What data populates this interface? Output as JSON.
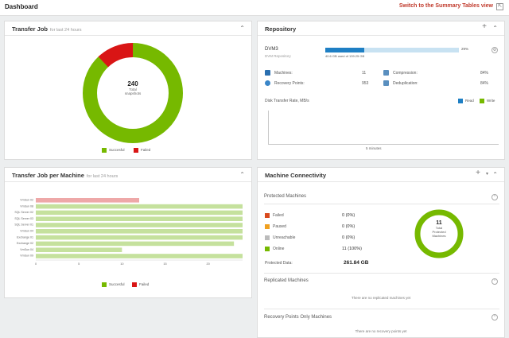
{
  "topbar": {
    "title": "Dashboard",
    "switch_label": "Switch to the Summary Tables view"
  },
  "transfer_job": {
    "title": "Transfer Job",
    "subtitle": "for last 24 hours",
    "total_value": "240",
    "total_label_1": "Total",
    "total_label_2": "snapshots",
    "legend": [
      {
        "label": "Succesful",
        "color": "#76b900"
      },
      {
        "label": "Failed",
        "color": "#d91515"
      }
    ],
    "chart_data": {
      "type": "pie",
      "title": "",
      "slices": [
        {
          "name": "Succesful",
          "value": 211,
          "color": "#76b900"
        },
        {
          "name": "Failed",
          "value": 29,
          "color": "#d91515"
        }
      ]
    }
  },
  "repository": {
    "title": "Repository",
    "name": "DVM3",
    "type": "DVM Repository",
    "usage_text": "40.6 GB used of 139.25 GB",
    "usage_percent": 29,
    "usage_percent_label": "29%",
    "metrics": [
      {
        "label": "Machines:",
        "value": "11"
      },
      {
        "label": "Recovery Points:",
        "value": "953"
      },
      {
        "label": "Compression:",
        "value": "84%"
      },
      {
        "label": "Deduplication:",
        "value": "84%"
      }
    ],
    "chart_title": "Disk Transfer Rate, MB/s",
    "chart_legend": [
      {
        "label": "Read",
        "color": "#1e7fc4"
      },
      {
        "label": "Write",
        "color": "#76b900"
      }
    ],
    "chart_xlabel": "5 minutes"
  },
  "per_machine": {
    "title": "Transfer Job per Machine",
    "subtitle": "for last 24 hours",
    "legend": [
      {
        "label": "Succesful",
        "color": "#76b900"
      },
      {
        "label": "Failed",
        "color": "#d91515"
      }
    ],
    "chart_data": {
      "type": "bar",
      "orientation": "horizontal",
      "categories": [
        "VmSun 02",
        "VmSun 08",
        "SQL Server 02",
        "SQL Server 03",
        "SQL Server 01",
        "VmSun 04",
        "Exchange 01",
        "Exchange 02",
        "VmSun 04",
        "VmSun 09"
      ],
      "series": [
        {
          "name": "Succesful",
          "color": "#c5e19d",
          "values": [
            0,
            24,
            24,
            24,
            24,
            24,
            24,
            23,
            10,
            24
          ]
        },
        {
          "name": "Failed",
          "color": "#eea8a8",
          "values": [
            12,
            0,
            0,
            0,
            0,
            0,
            0,
            0,
            0,
            0
          ]
        }
      ],
      "xlim": [
        0,
        24
      ],
      "xticks": [
        "0",
        "5",
        "10",
        "15",
        "20"
      ]
    }
  },
  "connectivity": {
    "title": "Machine Connectivity",
    "protected_title": "Protected Machines",
    "statuses": [
      {
        "label": "Failed",
        "value": "0 (0%)",
        "color": "#d94a1e"
      },
      {
        "label": "Paused",
        "value": "0 (0%)",
        "color": "#f0a020"
      },
      {
        "label": "Unreachable",
        "value": "0 (0%)",
        "color": "#bbbbbb"
      },
      {
        "label": "Online",
        "value": "11 (100%)",
        "color": "#76b900"
      }
    ],
    "protected_data_label": "Protected Data:",
    "protected_data_value": "261.84 GB",
    "ring_value": "11",
    "ring_label_1": "Total",
    "ring_label_2": "Protected",
    "ring_label_3": "Machines",
    "replicated_title": "Replicated Machines",
    "replicated_empty": "There are no replicated machines yet",
    "recovery_title": "Recovery Points Only Machines",
    "recovery_empty": "There are no recovery points yet"
  }
}
